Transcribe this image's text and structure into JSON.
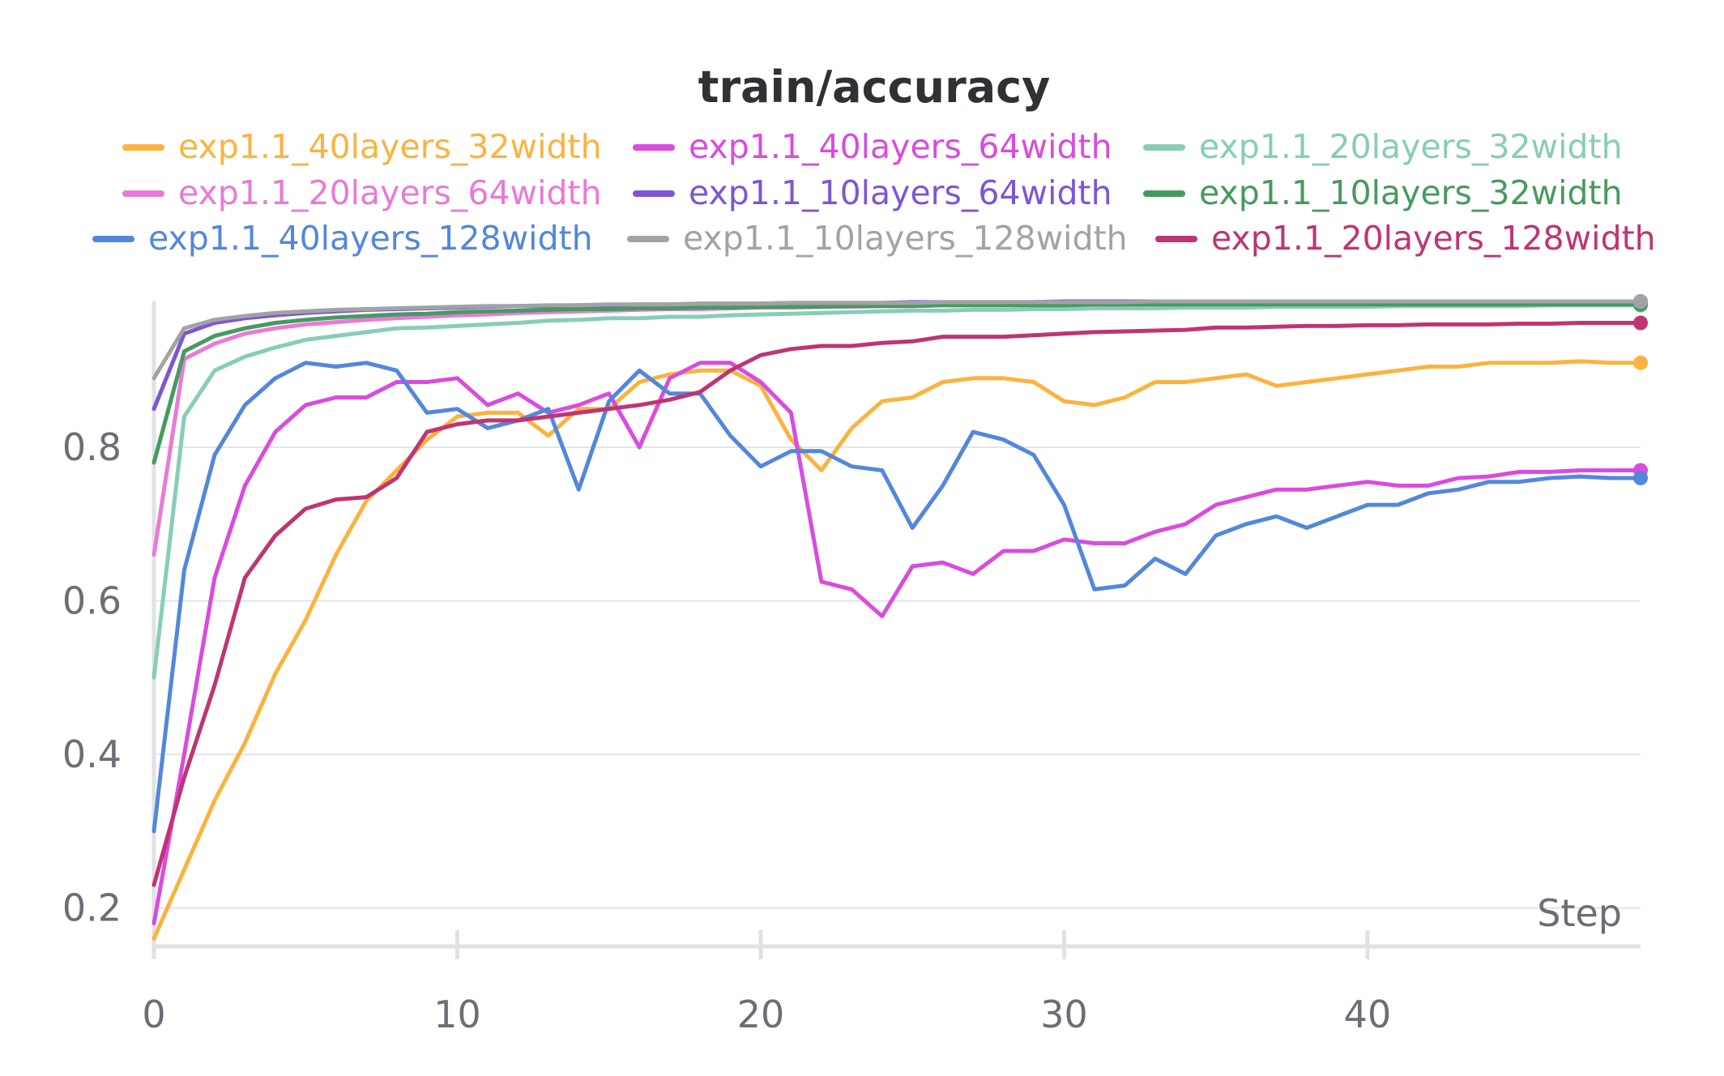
{
  "chart_data": {
    "type": "line",
    "title": "train/accuracy",
    "xlabel": "Step",
    "ylabel": "",
    "xlim": [
      0,
      49
    ],
    "ylim": [
      0.15,
      0.99
    ],
    "xticks": [
      0,
      10,
      20,
      30,
      40
    ],
    "xtick_labels": [
      "0",
      "10",
      "20",
      "30",
      "40"
    ],
    "yticks": [
      0.2,
      0.4,
      0.6,
      0.8
    ],
    "ytick_labels": [
      "0.2",
      "0.4",
      "0.6",
      "0.8"
    ],
    "grid": true,
    "legend_position": "top",
    "series": [
      {
        "name": "exp1.1_40layers_32width",
        "color": "#fbb33f",
        "x": [
          0,
          1,
          2,
          3,
          4,
          5,
          6,
          7,
          8,
          9,
          10,
          11,
          12,
          13,
          14,
          15,
          16,
          17,
          18,
          19,
          20,
          21,
          22,
          23,
          24,
          25,
          26,
          27,
          28,
          29,
          30,
          31,
          32,
          33,
          34,
          35,
          36,
          37,
          38,
          39,
          40,
          41,
          42,
          43,
          44,
          45,
          46,
          47,
          48,
          49
        ],
        "y": [
          0.16,
          0.25,
          0.34,
          0.415,
          0.505,
          0.575,
          0.66,
          0.73,
          0.77,
          0.81,
          0.84,
          0.845,
          0.845,
          0.815,
          0.85,
          0.85,
          0.885,
          0.895,
          0.9,
          0.9,
          0.88,
          0.81,
          0.77,
          0.825,
          0.86,
          0.865,
          0.885,
          0.89,
          0.89,
          0.885,
          0.86,
          0.855,
          0.865,
          0.885,
          0.885,
          0.89,
          0.895,
          0.88,
          0.885,
          0.89,
          0.895,
          0.9,
          0.905,
          0.905,
          0.91,
          0.91,
          0.91,
          0.912,
          0.91,
          0.91
        ]
      },
      {
        "name": "exp1.1_40layers_64width",
        "color": "#da4bdf",
        "x": [
          0,
          1,
          2,
          3,
          4,
          5,
          6,
          7,
          8,
          9,
          10,
          11,
          12,
          13,
          14,
          15,
          16,
          17,
          18,
          19,
          20,
          21,
          22,
          23,
          24,
          25,
          26,
          27,
          28,
          29,
          30,
          31,
          32,
          33,
          34,
          35,
          36,
          37,
          38,
          39,
          40,
          41,
          42,
          43,
          44,
          45,
          46,
          47,
          48,
          49
        ],
        "y": [
          0.18,
          0.4,
          0.63,
          0.75,
          0.82,
          0.855,
          0.865,
          0.865,
          0.885,
          0.885,
          0.89,
          0.855,
          0.87,
          0.845,
          0.855,
          0.87,
          0.8,
          0.89,
          0.91,
          0.91,
          0.885,
          0.845,
          0.625,
          0.615,
          0.58,
          0.645,
          0.65,
          0.635,
          0.665,
          0.665,
          0.68,
          0.675,
          0.675,
          0.69,
          0.7,
          0.725,
          0.735,
          0.745,
          0.745,
          0.75,
          0.755,
          0.75,
          0.75,
          0.76,
          0.762,
          0.768,
          0.768,
          0.77,
          0.77,
          0.77
        ]
      },
      {
        "name": "exp1.1_20layers_32width",
        "color": "#87cdb8",
        "x": [
          0,
          1,
          2,
          3,
          4,
          5,
          6,
          7,
          8,
          9,
          10,
          11,
          12,
          13,
          14,
          15,
          16,
          17,
          18,
          19,
          20,
          21,
          22,
          23,
          24,
          25,
          26,
          27,
          28,
          29,
          30,
          31,
          32,
          33,
          34,
          35,
          36,
          37,
          38,
          39,
          40,
          41,
          42,
          43,
          44,
          45,
          46,
          47,
          48,
          49
        ],
        "y": [
          0.5,
          0.84,
          0.9,
          0.918,
          0.93,
          0.94,
          0.945,
          0.95,
          0.955,
          0.956,
          0.958,
          0.96,
          0.962,
          0.965,
          0.966,
          0.968,
          0.968,
          0.97,
          0.97,
          0.972,
          0.973,
          0.974,
          0.975,
          0.976,
          0.977,
          0.978,
          0.978,
          0.979,
          0.979,
          0.98,
          0.98,
          0.981,
          0.981,
          0.981,
          0.982,
          0.982,
          0.982,
          0.983,
          0.983,
          0.983,
          0.983,
          0.984,
          0.984,
          0.984,
          0.984,
          0.984,
          0.985,
          0.985,
          0.985,
          0.985
        ]
      },
      {
        "name": "exp1.1_20layers_64width",
        "color": "#e87ad8",
        "x": [
          0,
          1,
          2,
          3,
          4,
          5,
          6,
          7,
          8,
          9,
          10,
          11,
          12,
          13,
          14,
          15,
          16,
          17,
          18,
          19,
          20,
          21,
          22,
          23,
          24,
          25,
          26,
          27,
          28,
          29,
          30,
          31,
          32,
          33,
          34,
          35,
          36,
          37,
          38,
          39,
          40,
          41,
          42,
          43,
          44,
          45,
          46,
          47,
          48,
          49
        ],
        "y": [
          0.66,
          0.915,
          0.935,
          0.948,
          0.955,
          0.96,
          0.963,
          0.966,
          0.968,
          0.97,
          0.972,
          0.973,
          0.975,
          0.976,
          0.977,
          0.978,
          0.979,
          0.98,
          0.98,
          0.981,
          0.982,
          0.982,
          0.983,
          0.983,
          0.984,
          0.984,
          0.985,
          0.985,
          0.985,
          0.986,
          0.986,
          0.986,
          0.986,
          0.987,
          0.987,
          0.987,
          0.987,
          0.987,
          0.988,
          0.988,
          0.988,
          0.988,
          0.988,
          0.988,
          0.989,
          0.989,
          0.989,
          0.989,
          0.989,
          0.989
        ]
      },
      {
        "name": "exp1.1_10layers_64width",
        "color": "#7e55d6",
        "x": [
          0,
          1,
          2,
          3,
          4,
          5,
          6,
          7,
          8,
          9,
          10,
          11,
          12,
          13,
          14,
          15,
          16,
          17,
          18,
          19,
          20,
          21,
          22,
          23,
          24,
          25,
          26,
          27,
          28,
          29,
          30,
          31,
          32,
          33,
          34,
          35,
          36,
          37,
          38,
          39,
          40,
          41,
          42,
          43,
          44,
          45,
          46,
          47,
          48,
          49
        ],
        "y": [
          0.85,
          0.948,
          0.962,
          0.968,
          0.972,
          0.975,
          0.977,
          0.979,
          0.98,
          0.981,
          0.982,
          0.983,
          0.984,
          0.984,
          0.985,
          0.985,
          0.986,
          0.986,
          0.987,
          0.987,
          0.987,
          0.988,
          0.988,
          0.988,
          0.988,
          0.989,
          0.989,
          0.989,
          0.989,
          0.989,
          0.99,
          0.99,
          0.99,
          0.99,
          0.99,
          0.99,
          0.99,
          0.99,
          0.99,
          0.99,
          0.99,
          0.99,
          0.99,
          0.99,
          0.99,
          0.99,
          0.99,
          0.99,
          0.99,
          0.99
        ]
      },
      {
        "name": "exp1.1_10layers_32width",
        "color": "#479a5f",
        "x": [
          0,
          1,
          2,
          3,
          4,
          5,
          6,
          7,
          8,
          9,
          10,
          11,
          12,
          13,
          14,
          15,
          16,
          17,
          18,
          19,
          20,
          21,
          22,
          23,
          24,
          25,
          26,
          27,
          28,
          29,
          30,
          31,
          32,
          33,
          34,
          35,
          36,
          37,
          38,
          39,
          40,
          41,
          42,
          43,
          44,
          45,
          46,
          47,
          48,
          49
        ],
        "y": [
          0.78,
          0.925,
          0.945,
          0.955,
          0.962,
          0.966,
          0.969,
          0.971,
          0.973,
          0.974,
          0.976,
          0.977,
          0.978,
          0.979,
          0.98,
          0.98,
          0.981,
          0.981,
          0.982,
          0.982,
          0.983,
          0.983,
          0.983,
          0.984,
          0.984,
          0.984,
          0.985,
          0.985,
          0.985,
          0.985,
          0.985,
          0.986,
          0.986,
          0.986,
          0.986,
          0.986,
          0.986,
          0.986,
          0.986,
          0.986,
          0.986,
          0.986,
          0.986,
          0.986,
          0.986,
          0.986,
          0.986,
          0.986,
          0.986,
          0.986
        ]
      },
      {
        "name": "exp1.1_40layers_128width",
        "color": "#5387dd",
        "x": [
          0,
          1,
          2,
          3,
          4,
          5,
          6,
          7,
          8,
          9,
          10,
          11,
          12,
          13,
          14,
          15,
          16,
          17,
          18,
          19,
          20,
          21,
          22,
          23,
          24,
          25,
          26,
          27,
          28,
          29,
          30,
          31,
          32,
          33,
          34,
          35,
          36,
          37,
          38,
          39,
          40,
          41,
          42,
          43,
          44,
          45,
          46,
          47,
          48,
          49
        ],
        "y": [
          0.3,
          0.64,
          0.79,
          0.855,
          0.89,
          0.91,
          0.905,
          0.91,
          0.9,
          0.845,
          0.85,
          0.825,
          0.835,
          0.85,
          0.745,
          0.86,
          0.9,
          0.87,
          0.87,
          0.815,
          0.775,
          0.795,
          0.795,
          0.775,
          0.77,
          0.695,
          0.75,
          0.82,
          0.81,
          0.79,
          0.725,
          0.615,
          0.62,
          0.655,
          0.635,
          0.685,
          0.7,
          0.71,
          0.695,
          0.71,
          0.725,
          0.725,
          0.74,
          0.745,
          0.755,
          0.755,
          0.76,
          0.762,
          0.76,
          0.76
        ]
      },
      {
        "name": "exp1.1_10layers_128width",
        "color": "#a1a3a7",
        "x": [
          0,
          1,
          2,
          3,
          4,
          5,
          6,
          7,
          8,
          9,
          10,
          11,
          12,
          13,
          14,
          15,
          16,
          17,
          18,
          19,
          20,
          21,
          22,
          23,
          24,
          25,
          26,
          27,
          28,
          29,
          30,
          31,
          32,
          33,
          34,
          35,
          36,
          37,
          38,
          39,
          40,
          41,
          42,
          43,
          44,
          45,
          46,
          47,
          48,
          49
        ],
        "y": [
          0.89,
          0.955,
          0.966,
          0.971,
          0.975,
          0.977,
          0.979,
          0.98,
          0.981,
          0.982,
          0.983,
          0.984,
          0.984,
          0.985,
          0.985,
          0.986,
          0.986,
          0.986,
          0.987,
          0.987,
          0.987,
          0.988,
          0.988,
          0.988,
          0.988,
          0.988,
          0.989,
          0.989,
          0.989,
          0.989,
          0.989,
          0.989,
          0.989,
          0.99,
          0.99,
          0.99,
          0.99,
          0.99,
          0.99,
          0.99,
          0.99,
          0.99,
          0.99,
          0.99,
          0.99,
          0.99,
          0.99,
          0.99,
          0.99,
          0.99
        ]
      },
      {
        "name": "exp1.1_20layers_128width",
        "color": "#bf3474",
        "x": [
          0,
          1,
          2,
          3,
          4,
          5,
          6,
          7,
          8,
          9,
          10,
          11,
          12,
          13,
          14,
          15,
          16,
          17,
          18,
          19,
          20,
          21,
          22,
          23,
          24,
          25,
          26,
          27,
          28,
          29,
          30,
          31,
          32,
          33,
          34,
          35,
          36,
          37,
          38,
          39,
          40,
          41,
          42,
          43,
          44,
          45,
          46,
          47,
          48,
          49
        ],
        "y": [
          0.23,
          0.37,
          0.49,
          0.63,
          0.685,
          0.72,
          0.732,
          0.735,
          0.76,
          0.82,
          0.83,
          0.835,
          0.835,
          0.84,
          0.845,
          0.85,
          0.855,
          0.862,
          0.872,
          0.9,
          0.92,
          0.928,
          0.932,
          0.932,
          0.936,
          0.938,
          0.944,
          0.944,
          0.944,
          0.946,
          0.948,
          0.95,
          0.951,
          0.952,
          0.953,
          0.956,
          0.956,
          0.957,
          0.958,
          0.958,
          0.959,
          0.959,
          0.96,
          0.96,
          0.96,
          0.961,
          0.961,
          0.962,
          0.962,
          0.962
        ]
      }
    ]
  }
}
